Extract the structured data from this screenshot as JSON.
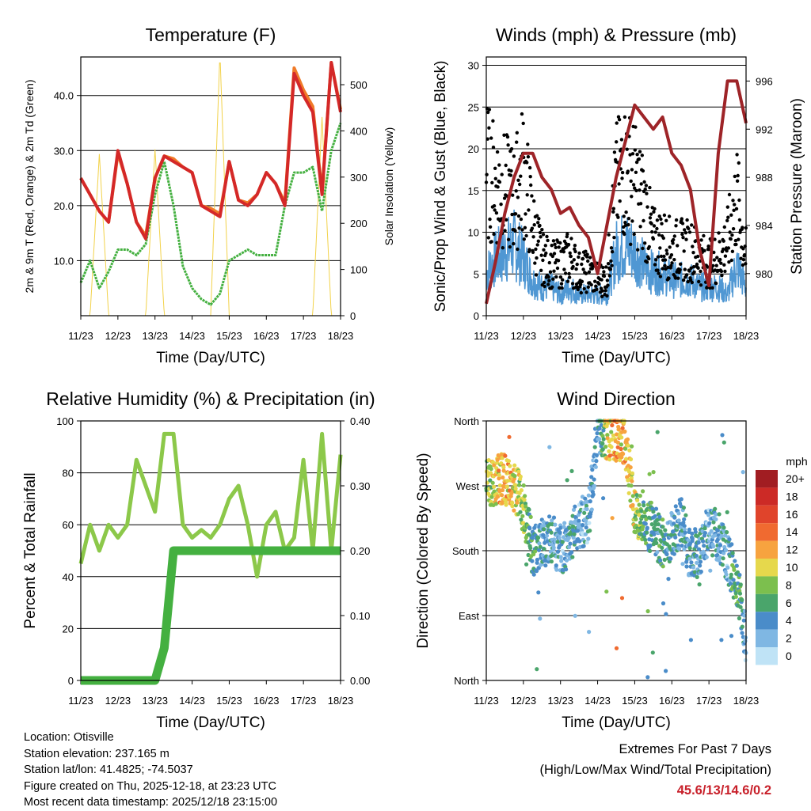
{
  "x_ticks": [
    "11/23",
    "12/23",
    "13/23",
    "14/23",
    "15/23",
    "16/23",
    "17/23",
    "18/23"
  ],
  "x_label": "Time (Day/UTC)",
  "panels": {
    "temperature": {
      "title": "Temperature (F)",
      "ylabel_left": "2m & 9m T (Red, Orange) & 2m Td (Green)",
      "ylabel_right": "Solar Insolation (Yellow)",
      "left_ticks": [
        "10.0",
        "20.0",
        "30.0",
        "40.0"
      ],
      "right_ticks": [
        "0",
        "100",
        "200",
        "300",
        "400",
        "500"
      ]
    },
    "winds": {
      "title": "Winds (mph) & Pressure (mb)",
      "ylabel_left": "Sonic/Prop Wind & Gust (Blue, Black)",
      "ylabel_right": "Station Pressure (Maroon)",
      "left_ticks": [
        "0",
        "5",
        "10",
        "15",
        "20",
        "25",
        "30"
      ],
      "right_ticks": [
        "980",
        "984",
        "988",
        "992",
        "996"
      ]
    },
    "humidity": {
      "title": "Relative Humidity (%) & Precipitation (in)",
      "ylabel_left": "Percent & Total Rainfall",
      "left_ticks": [
        "0",
        "20",
        "40",
        "60",
        "80",
        "100"
      ],
      "right_ticks": [
        "0.00",
        "0.10",
        "0.20",
        "0.30",
        "0.40"
      ]
    },
    "direction": {
      "title": "Wind Direction",
      "ylabel_left": "Direction (Colored By Speed)",
      "left_ticks": [
        "North",
        "East",
        "South",
        "West",
        "North"
      ]
    }
  },
  "legend": {
    "title": "mph",
    "labels": [
      "20+",
      "18",
      "16",
      "14",
      "12",
      "10",
      "8",
      "6",
      "4",
      "2",
      "0"
    ],
    "colors": [
      "#a11d22",
      "#cc2a26",
      "#e0442b",
      "#f06a30",
      "#f7a33f",
      "#e6d84c",
      "#7cbf4e",
      "#4aa56b",
      "#4a8cc9",
      "#7fb7e3",
      "#bfe3f6"
    ]
  },
  "station": {
    "location": "Location: Otisville",
    "elevation": "Station elevation: 237.165 m",
    "latlon": "Station lat/lon: 41.4825; -74.5037",
    "created": "Figure created on Thu, 2025-12-18, at 23:23 UTC",
    "recent": "Most recent data timestamp: 2025/12/18 23:15:00"
  },
  "extremes": {
    "title": "Extremes For Past 7 Days",
    "subtitle": "(High/Low/Max Wind/Total Precipitation)",
    "values": "45.6/13/14.6/0.2"
  },
  "chart_data": [
    {
      "type": "line",
      "title": "Temperature (F)",
      "xlabel": "Time (Day/UTC)",
      "ylabel": "2m & 9m T (Red, Orange) & 2m Td (Green)",
      "ylim": [
        0,
        47
      ],
      "y2label": "Solar Insolation (Yellow)",
      "y2lim": [
        0,
        560
      ],
      "x": [
        0,
        0.25,
        0.5,
        0.75,
        1,
        1.25,
        1.5,
        1.75,
        2,
        2.25,
        2.5,
        2.75,
        3,
        3.25,
        3.5,
        3.75,
        4,
        4.25,
        4.5,
        4.75,
        5,
        5.25,
        5.5,
        5.75,
        6,
        6.25,
        6.5,
        6.75,
        7
      ],
      "series": [
        {
          "name": "2m T",
          "color": "#d42828",
          "values": [
            25,
            22,
            19,
            17,
            30,
            24,
            17,
            14,
            25,
            29,
            28,
            27,
            26,
            20,
            19,
            18,
            28,
            21,
            20,
            22,
            26,
            24,
            20,
            44,
            40,
            37,
            22,
            46,
            37
          ]
        },
        {
          "name": "9m T",
          "color": "#f07a28",
          "values": [
            25,
            22,
            19,
            17,
            29.5,
            24,
            17,
            14.5,
            25,
            29,
            28.5,
            27,
            26,
            20,
            19.5,
            18.5,
            28,
            21,
            20.5,
            22,
            26,
            24,
            20.5,
            45,
            41,
            38,
            22.5,
            46,
            37.5
          ]
        },
        {
          "name": "2m Td",
          "color": "#44b040",
          "values": [
            6,
            10,
            5,
            8,
            12,
            12,
            11,
            13,
            22,
            28,
            20,
            9,
            5,
            3,
            2,
            4,
            10,
            11,
            12,
            11,
            11,
            11,
            20,
            26,
            26,
            27,
            19,
            30,
            35
          ]
        },
        {
          "name": "Solar Insolation",
          "axis": "y2",
          "color": "#f2d24a",
          "values": [
            0,
            0,
            350,
            0,
            0,
            0,
            0,
            0,
            360,
            0,
            0,
            0,
            0,
            0,
            0,
            570,
            0,
            0,
            0,
            0,
            0,
            0,
            0,
            0,
            0,
            0,
            430,
            0,
            0
          ]
        }
      ]
    },
    {
      "type": "line",
      "title": "Winds (mph) & Pressure (mb)",
      "xlabel": "Time (Day/UTC)",
      "ylabel": "Sonic/Prop Wind & Gust (Blue, Black)",
      "ylim": [
        0,
        31
      ],
      "y2label": "Station Pressure (Maroon)",
      "y2lim": [
        976.5,
        998
      ],
      "x": [
        0,
        0.25,
        0.5,
        0.75,
        1,
        1.25,
        1.5,
        1.75,
        2,
        2.25,
        2.5,
        2.75,
        3,
        3.25,
        3.5,
        3.75,
        4,
        4.25,
        4.5,
        4.75,
        5,
        5.25,
        5.5,
        5.75,
        6,
        6.25,
        6.5,
        6.75,
        7
      ],
      "series": [
        {
          "name": "Sonic/Prop Wind",
          "color": "#4f97d3",
          "values": [
            6,
            8,
            9,
            10,
            8,
            5,
            4,
            4,
            3,
            4,
            3,
            3,
            3,
            3,
            9,
            10,
            9,
            7,
            6,
            6,
            5,
            5,
            5,
            4,
            4,
            4,
            3,
            7,
            4
          ]
        },
        {
          "name": "Gust",
          "color": "#000000",
          "values": [
            20,
            18,
            17,
            16,
            20,
            12,
            8,
            7,
            7,
            8,
            6,
            6,
            5,
            5,
            18,
            20,
            18,
            15,
            10,
            10,
            9,
            9,
            9,
            8,
            7,
            8,
            10,
            16,
            8
          ]
        },
        {
          "name": "Station Pressure",
          "axis": "y2",
          "color": "#9e2428",
          "values": [
            977.5,
            981,
            985,
            988,
            990,
            990,
            988,
            987,
            985,
            985.5,
            984,
            983,
            980,
            984,
            988,
            991,
            994,
            993,
            992,
            993,
            990,
            989,
            987,
            982,
            979,
            990,
            996,
            996,
            992.5
          ]
        }
      ]
    },
    {
      "type": "line",
      "title": "Relative Humidity (%) & Precipitation (in)",
      "xlabel": "Time (Day/UTC)",
      "ylabel": "Percent & Total Rainfall",
      "ylim": [
        0,
        100
      ],
      "y2lim": [
        0,
        0.4
      ],
      "x": [
        0,
        0.25,
        0.5,
        0.75,
        1,
        1.25,
        1.5,
        1.75,
        2,
        2.25,
        2.5,
        2.75,
        3,
        3.25,
        3.5,
        3.75,
        4,
        4.25,
        4.5,
        4.75,
        5,
        5.25,
        5.5,
        5.75,
        6,
        6.25,
        6.5,
        6.75,
        7
      ],
      "series": [
        {
          "name": "Relative Humidity",
          "color": "#8cc84a",
          "values": [
            45,
            60,
            50,
            60,
            55,
            60,
            85,
            75,
            65,
            95,
            95,
            60,
            55,
            58,
            55,
            60,
            70,
            75,
            60,
            40,
            60,
            65,
            50,
            55,
            85,
            50,
            95,
            50,
            87
          ]
        },
        {
          "name": "Total Precipitation",
          "axis": "y2",
          "color": "#44b040",
          "values": [
            0,
            0,
            0,
            0,
            0,
            0,
            0,
            0,
            0,
            0.05,
            0.2,
            0.2,
            0.2,
            0.2,
            0.2,
            0.2,
            0.2,
            0.2,
            0.2,
            0.2,
            0.2,
            0.2,
            0.2,
            0.2,
            0.2,
            0.2,
            0.2,
            0.2,
            0.2
          ]
        }
      ]
    },
    {
      "type": "scatter",
      "title": "Wind Direction",
      "xlabel": "Time (Day/UTC)",
      "ylabel": "Direction (Colored By Speed)",
      "yticks": [
        "North",
        "East",
        "South",
        "West",
        "North"
      ],
      "ylim": [
        0,
        360
      ],
      "color_by": "speed (mph)",
      "x": [
        0,
        0.25,
        0.5,
        0.75,
        1,
        1.25,
        1.5,
        1.75,
        2,
        2.25,
        2.5,
        2.75,
        3,
        3.25,
        3.5,
        3.75,
        4,
        4.25,
        4.5,
        4.75,
        5,
        5.25,
        5.5,
        5.75,
        6,
        6.25,
        6.5,
        6.75,
        7
      ],
      "series": [
        {
          "name": "Direction",
          "values": [
            270,
            280,
            280,
            270,
            240,
            180,
            190,
            200,
            180,
            190,
            220,
            220,
            350,
            340,
            340,
            330,
            230,
            220,
            210,
            190,
            200,
            220,
            170,
            180,
            210,
            200,
            170,
            140,
            50
          ]
        },
        {
          "name": "Speed",
          "values": [
            8,
            10,
            12,
            10,
            8,
            5,
            4,
            4,
            3,
            4,
            3,
            3,
            3,
            10,
            12,
            11,
            9,
            6,
            5,
            5,
            4,
            4,
            4,
            4,
            3,
            4,
            3,
            7,
            3
          ]
        }
      ]
    }
  ]
}
